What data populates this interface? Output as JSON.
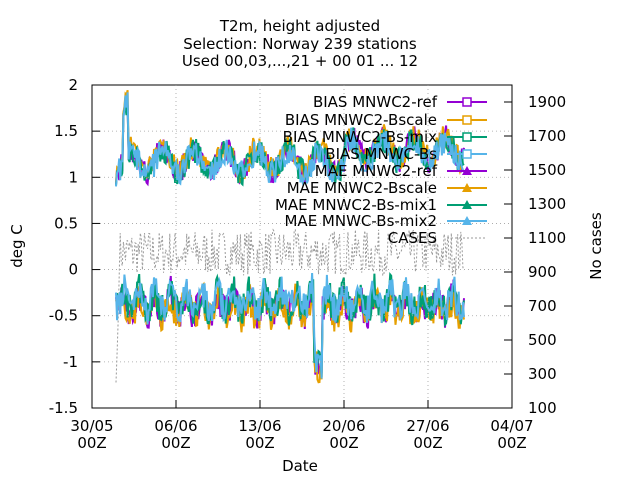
{
  "chart_data": {
    "type": "line",
    "title": "T2m, height adjusted",
    "subtitle_lines": [
      "Selection: Norway     239 stations",
      "Used 00,03,...,21 + 00 01 ... 12"
    ],
    "xlabel": "Date",
    "ylabel": "deg C",
    "y2label": "No cases",
    "x_range_days": [
      0,
      35
    ],
    "ylim": [
      -1.5,
      2
    ],
    "y2lim": [
      100,
      2000
    ],
    "x_ticks": [
      {
        "line1": "30/05",
        "line2": "00Z",
        "day": 0
      },
      {
        "line1": "06/06",
        "line2": "00Z",
        "day": 7
      },
      {
        "line1": "13/06",
        "line2": "00Z",
        "day": 14
      },
      {
        "line1": "20/06",
        "line2": "00Z",
        "day": 21
      },
      {
        "line1": "27/06",
        "line2": "00Z",
        "day": 28
      },
      {
        "line1": "04/07",
        "line2": "00Z",
        "day": 35
      }
    ],
    "y_ticks": [
      "-1.5",
      "-1",
      "-0.5",
      "0",
      "0.5",
      "1",
      "1.5",
      "2"
    ],
    "y2_ticks": [
      "100",
      "300",
      "500",
      "700",
      "900",
      "1100",
      "1300",
      "1500",
      "1700",
      "1900"
    ],
    "grid": true,
    "legend_position": "top-right",
    "series": [
      {
        "name": "BIAS MNWC2-ref",
        "color": "#9400d3",
        "marker": "square"
      },
      {
        "name": "BIAS MNWC2-Bscale",
        "color": "#e69f00",
        "marker": "square"
      },
      {
        "name": "BIAS MNWC2-Bs-mix",
        "color": "#009e73",
        "marker": "square"
      },
      {
        "name": "BIAS MNWC-Bs",
        "color": "#56b4e9",
        "marker": "square"
      },
      {
        "name": "MAE MNWC2-ref",
        "color": "#9400d3",
        "marker": "triangle"
      },
      {
        "name": "MAE MNWC2-Bscale",
        "color": "#e69f00",
        "marker": "triangle"
      },
      {
        "name": "MAE MNWC2-Bs-mix1",
        "color": "#009e73",
        "marker": "triangle"
      },
      {
        "name": "MAE MNWC-Bs-mix2",
        "color": "#56b4e9",
        "marker": "triangle"
      },
      {
        "name": "CASES",
        "color": "#999999",
        "marker": "none"
      }
    ]
  }
}
